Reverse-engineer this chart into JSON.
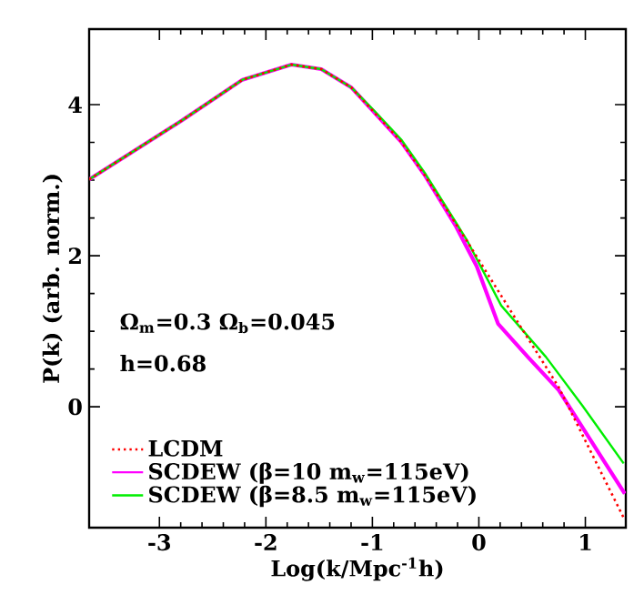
{
  "chart_data": {
    "type": "line",
    "xlabel": "Log(k/Mpc$^{-1}$h)",
    "ylabel": "P(k)   (arb. norm.)",
    "annotations": [
      "Ω$_{m}$=0.3  Ω$_{b}$=0.045",
      "h=0.68"
    ],
    "xlim": [
      -3.66,
      1.38
    ],
    "ylim": [
      -1.6,
      5
    ],
    "xticks": [
      -3,
      -2,
      -1,
      0,
      1
    ],
    "yticks": [
      0,
      2,
      4
    ],
    "legend": "bottom left",
    "grid": false,
    "series": [
      {
        "name": "LCDM",
        "color": "#ff0000",
        "line_style": "dotted",
        "x": [
          -3.66,
          -2.79,
          -2.22,
          -1.76,
          -1.48,
          -1.2,
          -0.99,
          -0.73,
          -0.51,
          -0.22,
          -0.11,
          0.41,
          0.75,
          1.36
        ],
        "values": [
          3.01,
          3.79,
          4.33,
          4.53,
          4.47,
          4.23,
          3.91,
          3.51,
          3.07,
          2.43,
          2.19,
          1.02,
          0.26,
          -1.47
        ]
      },
      {
        "name": "SCDEW (β=10 m$_{w}$=115eV)",
        "color": "#ff00ff",
        "line_style": "solid",
        "x": [
          -3.66,
          -2.79,
          -2.22,
          -1.76,
          -1.48,
          -1.2,
          -0.99,
          -0.73,
          -0.51,
          -0.22,
          -0.02,
          0.18,
          0.46,
          0.75,
          1.37
        ],
        "values": [
          3.01,
          3.79,
          4.33,
          4.53,
          4.47,
          4.23,
          3.91,
          3.51,
          3.07,
          2.4,
          1.86,
          1.1,
          0.66,
          0.22,
          -1.15
        ]
      },
      {
        "name": "SCDEW (β=8.5 m$_{w}$=115eV)",
        "color": "#00ee00",
        "line_style": "solid",
        "x": [
          -3.66,
          -2.79,
          -2.22,
          -1.76,
          -1.48,
          -1.2,
          -0.99,
          -0.73,
          -0.51,
          -0.22,
          -0.11,
          0.21,
          0.63,
          0.97,
          1.36
        ],
        "values": [
          3.01,
          3.79,
          4.33,
          4.53,
          4.47,
          4.23,
          3.93,
          3.54,
          3.1,
          2.45,
          2.2,
          1.34,
          0.66,
          0.02,
          -0.75
        ]
      }
    ]
  }
}
